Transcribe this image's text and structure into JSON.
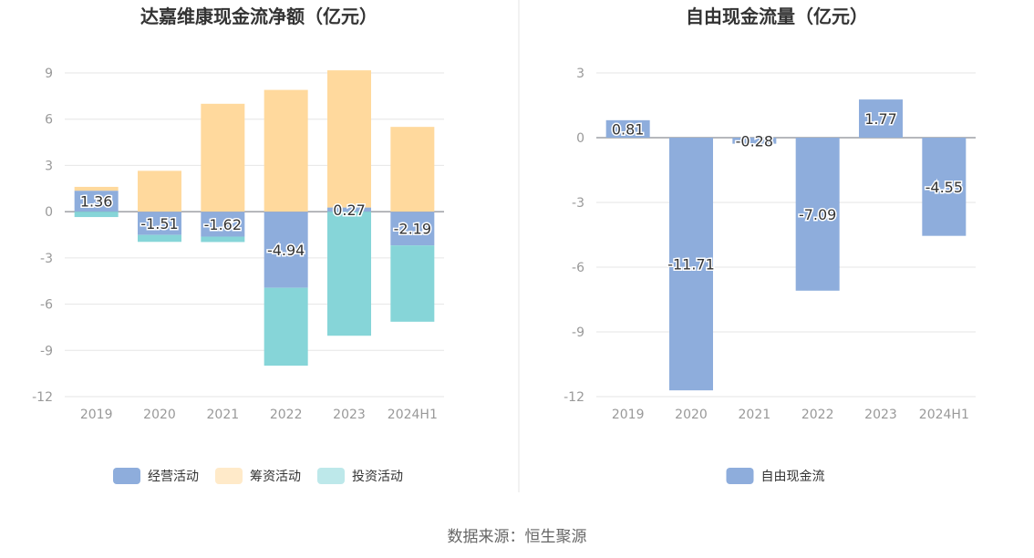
{
  "source_note": "数据来源：恒生聚源",
  "colors": {
    "operating": "#8EADDC",
    "financing": "#FFD99D",
    "investing": "#86D5D8",
    "fcf": "#8EADDC",
    "axis_text": "#999999",
    "grid": "#E6E6E6",
    "title": "#333333"
  },
  "chart_data": [
    {
      "type": "bar",
      "stacked": true,
      "title": "达嘉维康现金流净额（亿元）",
      "categories": [
        "2019",
        "2020",
        "2021",
        "2022",
        "2023",
        "2024H1"
      ],
      "ylim": [
        -12,
        9
      ],
      "yticks": [
        9,
        6,
        3,
        0,
        -3,
        -6,
        -9,
        -12
      ],
      "grid": true,
      "legend_position": "bottom",
      "series": [
        {
          "name": "经营活动",
          "values": [
            1.36,
            -1.51,
            -1.62,
            -4.94,
            0.27,
            -2.19
          ],
          "show_labels": true
        },
        {
          "name": "筹资活动",
          "values": [
            0.25,
            2.65,
            7.0,
            7.9,
            8.9,
            5.5
          ],
          "show_labels": false
        },
        {
          "name": "投资活动",
          "values": [
            -0.35,
            -0.45,
            -0.35,
            -5.05,
            -8.05,
            -4.95
          ],
          "show_labels": false
        }
      ]
    },
    {
      "type": "bar",
      "title": "自由现金流量（亿元）",
      "categories": [
        "2019",
        "2020",
        "2021",
        "2022",
        "2023",
        "2024H1"
      ],
      "ylim": [
        -12,
        3
      ],
      "yticks": [
        3,
        0,
        -3,
        -6,
        -9,
        -12
      ],
      "grid": true,
      "legend_position": "bottom",
      "series": [
        {
          "name": "自由现金流",
          "values": [
            0.81,
            -11.71,
            -0.28,
            -7.09,
            1.77,
            -4.55
          ],
          "show_labels": true
        }
      ]
    }
  ]
}
